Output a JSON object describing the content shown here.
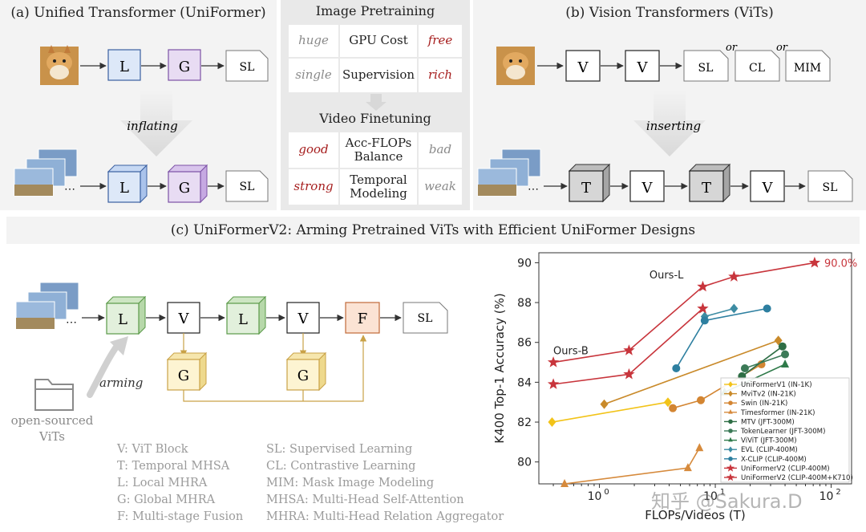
{
  "panel_a": {
    "title": "(a) Unified Transformer (UniFormer)",
    "arrow_label": "inflating",
    "top_blocks": [
      "L",
      "G",
      "SL"
    ],
    "bottom_blocks": [
      "L",
      "G",
      "SL"
    ]
  },
  "panel_b": {
    "title": "(b) Vision Transformers (ViTs)",
    "arrow_label": "inserting",
    "top_blocks": [
      "V",
      "V",
      "SL",
      "CL",
      "MIM"
    ],
    "or_labels": [
      "or",
      "or"
    ],
    "bottom_blocks": [
      "T",
      "V",
      "T",
      "V",
      "SL"
    ]
  },
  "middle": {
    "pretrain_title": "Image Pretraining",
    "pretrain_rows": [
      {
        "left": "huge",
        "center": "GPU Cost",
        "right": "free"
      },
      {
        "left": "single",
        "center": "Supervision",
        "right": "rich"
      }
    ],
    "finetune_title": "Video Finetuning",
    "finetune_rows": [
      {
        "left": "good",
        "center_1": "Acc-FLOPs",
        "center_2": "Balance",
        "right": "bad"
      },
      {
        "left": "strong",
        "center_1": "Temporal",
        "center_2": "Modeling",
        "right": "weak"
      }
    ]
  },
  "panel_c": {
    "title": "(c) UniFormerV2: Arming Pretrained ViTs with Efficient UniFormer Designs",
    "blocks": [
      "L",
      "V",
      "L",
      "V",
      "F",
      "SL"
    ],
    "global_blocks": [
      "G",
      "G"
    ],
    "arming_label": "arming",
    "open_source_1": "open-sourced",
    "open_source_2": "ViTs",
    "legend_left": [
      "V: ViT Block",
      "T: Temporal MHSA",
      "L: Local MHRA",
      "G: Global MHRA",
      "F: Multi-stage Fusion"
    ],
    "legend_right": [
      "SL: Supervised Learning",
      "CL: Contrastive Learning",
      "MIM: Mask Image Modeling",
      "MHSA: Multi-Head Self-Attention",
      "MHRA: Multi-Head Relation Aggregator"
    ]
  },
  "watermark": "知乎 @Sakura.D",
  "chart_data": {
    "type": "line",
    "xlabel": "FLOPs/Videos (T)",
    "ylabel": "K400 Top-1 Accuracy (%)",
    "x_scale": "log",
    "xlim": [
      0.3,
      150
    ],
    "ylim": [
      78.9,
      90.5
    ],
    "x_ticks": [
      "10",
      "10",
      "10"
    ],
    "x_tick_exponents": [
      "0",
      "1",
      "2"
    ],
    "y_ticks": [
      "80",
      "82",
      "84",
      "86",
      "88",
      "90"
    ],
    "legend_position": "lower-right",
    "annotations": [
      {
        "text": "Ours-L",
        "x": 5.8,
        "y": 88.8
      },
      {
        "text": "Ours-B",
        "x": 0.4,
        "y": 85.0
      },
      {
        "text": "90.0%",
        "x": 72,
        "y": 90.0
      }
    ],
    "series": [
      {
        "name": "UniFormerV1 (IN-1K)",
        "color": "#f2c318",
        "marker": "diamond",
        "x": [
          0.39,
          3.9
        ],
        "y": [
          82.0,
          83.0
        ]
      },
      {
        "name": "MviTv2 (IN-21K)",
        "color": "#c98a2a",
        "marker": "diamond",
        "x": [
          1.1,
          35
        ],
        "y": [
          82.9,
          86.1
        ]
      },
      {
        "name": "Swin (IN-21K)",
        "color": "#d38532",
        "marker": "circle",
        "x": [
          4.3,
          7.5,
          25
        ],
        "y": [
          82.7,
          83.1,
          84.9
        ]
      },
      {
        "name": "Timesformer (IN-21K)",
        "color": "#d68a3c",
        "marker": "triangle",
        "x": [
          0.5,
          5.8,
          7.3
        ],
        "y": [
          78.9,
          79.7,
          80.7
        ]
      },
      {
        "name": "MTV (JFT-300M)",
        "color": "#2e6e45",
        "marker": "circle",
        "x": [
          17,
          38
        ],
        "y": [
          84.3,
          85.8
        ]
      },
      {
        "name": "TokenLearner (JFT-300M)",
        "color": "#3b7a57",
        "marker": "circle",
        "x": [
          18,
          40
        ],
        "y": [
          84.7,
          85.4
        ]
      },
      {
        "name": "ViViT (JFT-300M)",
        "color": "#2f7a4a",
        "marker": "triangle",
        "x": [
          12,
          40
        ],
        "y": [
          83.5,
          84.9
        ]
      },
      {
        "name": "EVL (CLIP-400M)",
        "color": "#3d8ca3",
        "marker": "diamond",
        "x": [
          8.1,
          14.5
        ],
        "y": [
          87.3,
          87.7
        ]
      },
      {
        "name": "X-CLIP (CLIP-400M)",
        "color": "#2d7fa0",
        "marker": "circle",
        "x": [
          4.6,
          8.1,
          28
        ],
        "y": [
          84.7,
          87.1,
          87.7
        ]
      },
      {
        "name": "UniFormerV2 (CLIP-400M)",
        "color": "#c8353c",
        "marker": "star",
        "x": [
          0.4,
          1.8,
          7.8
        ],
        "y": [
          83.9,
          84.4,
          87.7
        ]
      },
      {
        "name": "UniFormerV2 (CLIP-400M+K710)",
        "color": "#c8353c",
        "marker": "star",
        "x": [
          0.4,
          1.8,
          7.8,
          14.5,
          72
        ],
        "y": [
          85.0,
          85.6,
          88.8,
          89.3,
          90.0
        ]
      }
    ]
  }
}
